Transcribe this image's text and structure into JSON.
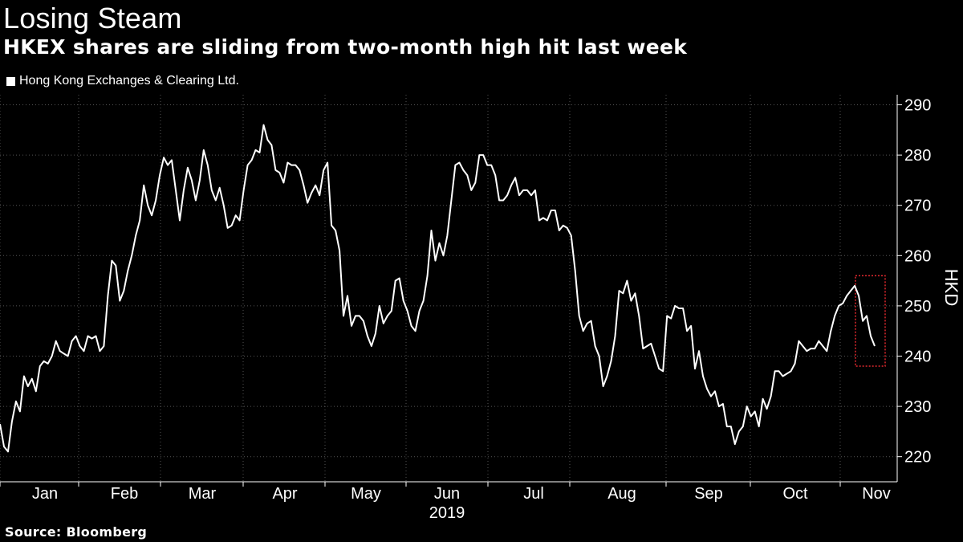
{
  "header": {
    "title": "Losing Steam",
    "subtitle": "HKEX shares are sliding from two-month high hit last week"
  },
  "footer": {
    "source": "Source: Bloomberg"
  },
  "colors": {
    "background": "#000000",
    "line": "#ffffff",
    "grid": "#555555",
    "highlight": "#e0282e"
  },
  "chart_data": {
    "type": "line",
    "title": "Losing Steam",
    "subtitle": "HKEX shares are sliding from two-month high hit last week",
    "xlabel": "2019",
    "ylabel": "HKD",
    "ylim": [
      215,
      292
    ],
    "yticks": [
      220,
      230,
      240,
      250,
      260,
      270,
      280,
      290
    ],
    "month_labels": [
      "Jan",
      "Feb",
      "Mar",
      "Apr",
      "May",
      "Jun",
      "Jul",
      "Aug",
      "Sep",
      "Oct",
      "Nov"
    ],
    "year_label": "2019",
    "legend": [
      "Hong Kong Exchanges & Clearing Ltd."
    ],
    "legend_position": "top-left",
    "grid": true,
    "annotation": "dotted red box around last week's two-month high and subsequent slide",
    "series": [
      {
        "name": "Hong Kong Exchanges & Clearing Ltd.",
        "values": [
          226.5,
          222,
          221,
          227,
          231,
          229,
          236,
          234,
          235.5,
          233,
          238,
          239,
          238.5,
          240,
          243,
          241,
          240.5,
          240,
          243,
          244,
          242,
          241,
          244,
          243.5,
          244,
          241,
          242,
          252,
          259,
          258,
          251,
          253,
          257,
          260,
          264,
          267,
          274,
          270,
          268,
          271,
          276,
          279.5,
          278,
          279,
          273,
          267,
          273,
          277.5,
          275,
          271,
          275,
          281,
          278,
          273,
          271,
          273.5,
          270,
          265.5,
          266,
          268,
          267,
          273,
          278,
          279,
          281,
          280.5,
          286,
          283,
          282,
          277,
          276.5,
          274.5,
          278.5,
          278,
          278,
          277,
          274,
          270.5,
          272.5,
          274,
          272,
          277,
          278.5,
          266,
          265,
          261,
          248,
          252,
          246,
          248,
          248,
          247,
          244,
          242,
          244.5,
          250,
          246.5,
          248,
          249,
          255,
          255.5,
          251,
          249,
          246,
          245,
          249,
          251,
          256,
          265,
          259,
          262.5,
          260,
          264,
          271,
          278,
          278.5,
          277,
          276,
          273,
          274.5,
          280,
          280,
          278,
          278,
          276,
          271,
          271,
          272,
          274,
          275.5,
          272,
          273,
          273,
          272,
          273,
          267,
          267.5,
          267,
          269,
          269,
          265,
          266,
          265.5,
          264,
          257,
          248,
          245,
          246.5,
          247,
          242,
          240,
          234,
          236,
          239,
          244,
          253,
          252.5,
          255,
          251,
          252.5,
          248,
          241.5,
          242,
          242.5,
          240,
          237.5,
          237,
          248,
          247.5,
          250,
          249.5,
          249.5,
          245,
          246,
          237.5,
          241,
          236,
          233.5,
          232,
          233,
          230,
          230.5,
          226,
          226,
          222.5,
          225,
          226,
          230,
          228,
          229,
          226,
          231.5,
          229.5,
          232,
          237,
          237,
          236,
          236.5,
          237,
          238.5,
          243,
          242,
          241,
          241.5,
          241.5,
          243,
          242,
          241,
          245,
          248,
          250,
          250.5,
          252,
          253,
          254,
          252,
          247,
          248,
          244,
          242
        ]
      }
    ],
    "highlight_box": {
      "y_range": [
        238,
        256
      ]
    }
  }
}
